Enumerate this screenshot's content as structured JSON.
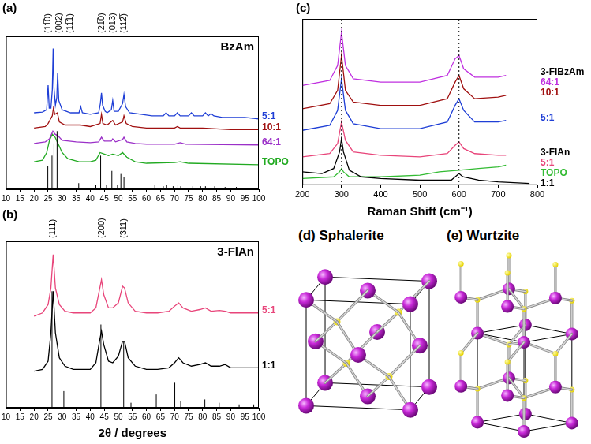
{
  "chart_data": [
    {
      "type": "line",
      "panel": "(a)",
      "title": "BzAm",
      "xlim": [
        10,
        100
      ],
      "xticks": [
        10,
        15,
        20,
        25,
        30,
        35,
        40,
        45,
        50,
        55,
        60,
        65,
        70,
        75,
        80,
        85,
        90,
        95,
        100
      ],
      "ylim": [
        0,
        100
      ],
      "tick_labels": "x",
      "grid": false,
      "series": [
        {
          "name": "5:1",
          "color": "#1f3fd6",
          "x": [
            20,
            23,
            24.5,
            25,
            25.4,
            26,
            26.5,
            26.8,
            27.1,
            27.6,
            28.1,
            28.4,
            28.8,
            30,
            33,
            36,
            36.6,
            37.2,
            40,
            43,
            43.6,
            44,
            44.4,
            45.3,
            46,
            47.5,
            48,
            48.5,
            50,
            51.5,
            52,
            52.6,
            54,
            58,
            62,
            66,
            67,
            68,
            70,
            71,
            72,
            75,
            76,
            77,
            80,
            81,
            82,
            83,
            84,
            87,
            90,
            95,
            100
          ],
          "values": [
            50,
            50.5,
            52,
            68,
            53,
            53,
            65,
            92,
            66,
            55,
            60,
            76,
            58,
            52,
            50,
            50,
            54,
            50,
            49,
            50,
            56,
            63,
            55,
            51,
            50,
            52,
            58,
            51,
            51,
            56,
            62,
            54,
            50,
            49,
            48,
            48,
            50,
            48,
            48,
            50,
            48,
            48,
            50,
            48,
            48,
            50,
            48,
            49.5,
            48,
            47,
            47,
            47,
            46
          ]
        },
        {
          "name": "10:1",
          "color": "#a01010",
          "x": [
            20,
            24,
            25,
            26.5,
            26.9,
            27.4,
            28.3,
            29,
            31,
            36.5,
            40,
            43.5,
            44,
            44.5,
            46,
            48,
            49,
            51.5,
            52,
            52.8,
            55,
            60,
            70,
            71,
            72,
            80,
            90,
            100
          ],
          "values": [
            40,
            41,
            43,
            48,
            53,
            49,
            50,
            44,
            42,
            42,
            41,
            43,
            49,
            43,
            42,
            45,
            42,
            44,
            48,
            43,
            41,
            40,
            40,
            41,
            40,
            40,
            39,
            39
          ]
        },
        {
          "name": "64:1",
          "color": "#9b30c8",
          "x": [
            20,
            24,
            25.5,
            26.7,
            27.5,
            28.5,
            30,
            35,
            40,
            43,
            44,
            45,
            47.5,
            48,
            49,
            51.5,
            52,
            53,
            56,
            60,
            70,
            72,
            74,
            100
          ],
          "values": [
            30,
            31,
            33,
            38,
            36,
            35,
            32,
            31,
            30.5,
            31,
            34,
            31.5,
            31.5,
            33,
            31,
            32.5,
            34,
            31,
            30,
            29.5,
            29.5,
            30.5,
            29.5,
            29
          ]
        },
        {
          "name": "TOPO",
          "color": "#22aa22",
          "x": [
            20,
            23,
            24.5,
            25.5,
            26.5,
            27.5,
            28.5,
            30,
            32,
            36,
            40,
            42,
            43.5,
            45,
            46.5,
            48,
            50,
            51.5,
            53,
            56,
            60,
            70,
            72,
            75,
            100
          ],
          "values": [
            18,
            19,
            24,
            32,
            36,
            34,
            30,
            24,
            20,
            18,
            18,
            19,
            24,
            23,
            22,
            23,
            22,
            24,
            21,
            18,
            17,
            17.5,
            18,
            17,
            16
          ]
        }
      ],
      "reference": {
        "color": "#000000",
        "x": [
          24.9,
          26.4,
          27.1,
          28.2,
          35.9,
          42.0,
          43.7,
          45.8,
          47.7,
          49.7,
          50.9,
          52.0,
          55.9,
          57.6,
          60.9,
          63.0,
          66.0,
          67.2,
          69.5,
          71.2,
          72.2,
          76.5,
          79.3,
          81.0,
          84.3,
          88.0,
          92.0,
          96.0
        ],
        "values": [
          15,
          22,
          30,
          38,
          4,
          3,
          22,
          3,
          12,
          3,
          10,
          8,
          1,
          1,
          1,
          3,
          2,
          3,
          2,
          3,
          2,
          2,
          2,
          2,
          2,
          1.5,
          1.5,
          1
        ]
      },
      "peak_labels": [
        {
          "x": 25.0,
          "label": "(11̅0)"
        },
        {
          "x": 26.8,
          "label": "(002)"
        },
        {
          "x": 28.4,
          "label": "(11̅1)"
        },
        {
          "x": 44.0,
          "label": "(21̅0)"
        },
        {
          "x": 48.0,
          "label": "(013)"
        },
        {
          "x": 52.0,
          "label": "(112̅)"
        }
      ]
    },
    {
      "type": "line",
      "panel": "(b)",
      "title": "3-FlAn",
      "x_label": "2θ / degrees",
      "xlim": [
        10,
        100
      ],
      "xticks": [
        10,
        15,
        20,
        25,
        30,
        35,
        40,
        45,
        50,
        55,
        60,
        65,
        70,
        75,
        80,
        85,
        90,
        95,
        100
      ],
      "ylim": [
        0,
        100
      ],
      "tick_labels": "x",
      "grid": false,
      "series": [
        {
          "name": "5:1",
          "color": "#e8457a",
          "x": [
            20,
            23,
            25,
            26,
            26.8,
            27.6,
            29,
            31,
            34,
            40,
            42,
            43.3,
            44,
            44.8,
            46.5,
            48,
            50,
            51.5,
            52.2,
            53.5,
            56,
            60,
            64,
            68,
            70,
            71.5,
            73,
            76,
            79,
            81,
            83,
            86,
            88,
            90,
            95,
            100
          ],
          "values": [
            55,
            57,
            62,
            72,
            92,
            72,
            62,
            58,
            57,
            57,
            60,
            71,
            77,
            68,
            60,
            60,
            63,
            73,
            72,
            63,
            58,
            57,
            57,
            58,
            61,
            63,
            60,
            58,
            59,
            60,
            58,
            58.5,
            58,
            57,
            57,
            57
          ]
        },
        {
          "name": "1:1",
          "color": "#000000",
          "x": [
            20,
            23,
            25,
            26,
            26.8,
            27.6,
            29,
            31,
            34,
            40,
            42,
            43.3,
            44,
            44.8,
            46.5,
            48,
            50,
            51.5,
            52.2,
            53.5,
            56,
            60,
            64,
            68,
            70,
            71.5,
            73,
            76,
            79,
            81,
            83,
            86,
            88,
            90,
            95,
            100
          ],
          "values": [
            22,
            23,
            28,
            45,
            70,
            45,
            30,
            25,
            23,
            23,
            27,
            40,
            46,
            38,
            28,
            27,
            31,
            40,
            40,
            30,
            25,
            23,
            23,
            24,
            27,
            30,
            27,
            25,
            26,
            27,
            25,
            25,
            26,
            24,
            24,
            24
          ]
        }
      ],
      "reference": {
        "color": "#000000",
        "x": [
          26.4,
          30.6,
          43.8,
          51.9,
          54.5,
          63.5,
          70.1,
          72.2,
          80.8,
          85.9,
          93.0,
          98.2
        ],
        "values": [
          70,
          10,
          50,
          40,
          3,
          8,
          15,
          4,
          5,
          3,
          2,
          2
        ]
      },
      "peak_labels": [
        {
          "x": 26.8,
          "label": "(111)"
        },
        {
          "x": 44.0,
          "label": "(200)"
        },
        {
          "x": 52.0,
          "label": "(311)"
        }
      ]
    },
    {
      "type": "line",
      "panel": "(c)",
      "x_label": "Raman Shift (cm⁻¹)",
      "xlim": [
        200,
        800
      ],
      "xticks": [
        200,
        300,
        400,
        500,
        600,
        700,
        800
      ],
      "ylim": [
        0,
        100
      ],
      "tick_labels": "x",
      "grid": false,
      "vlines": [
        300,
        600
      ],
      "series": [
        {
          "name": "1:1",
          "color": "#000000",
          "x": [
            200,
            250,
            280,
            295,
            300,
            305,
            320,
            350,
            400,
            500,
            580,
            595,
            600,
            610,
            650,
            700,
            780
          ],
          "values": [
            8,
            7,
            10,
            20,
            28,
            20,
            9,
            5,
            4,
            3,
            3,
            6,
            7,
            5,
            3,
            2,
            1
          ]
        },
        {
          "name": "TOPO",
          "color": "#33bb33",
          "x": [
            200,
            280,
            295,
            300,
            305,
            320,
            400,
            500,
            550,
            600,
            650,
            700,
            720
          ],
          "values": [
            4,
            5,
            8,
            10,
            8,
            5,
            5,
            6,
            8,
            9,
            10,
            11,
            12
          ]
        },
        {
          "name": "5:1",
          "color": "#e8457a",
          "x": [
            200,
            270,
            290,
            300,
            310,
            330,
            400,
            500,
            570,
            590,
            600,
            612,
            640,
            700,
            720
          ],
          "values": [
            17,
            19,
            25,
            38,
            27,
            20,
            18,
            17,
            19,
            24,
            26,
            22,
            19,
            18,
            18
          ]
        },
        {
          "name": "5:1",
          "color": "#1f3fd6",
          "x": [
            200,
            270,
            290,
            300,
            310,
            330,
            400,
            500,
            570,
            590,
            600,
            612,
            640,
            700,
            720
          ],
          "values": [
            33,
            36,
            45,
            64,
            45,
            37,
            34,
            34,
            38,
            48,
            52,
            45,
            38,
            38,
            39
          ]
        },
        {
          "name": "10:1",
          "color": "#a01010",
          "x": [
            200,
            270,
            290,
            300,
            310,
            330,
            400,
            500,
            570,
            590,
            600,
            612,
            640,
            700,
            720
          ],
          "values": [
            46,
            49,
            57,
            78,
            57,
            50,
            48,
            48,
            52,
            62,
            66,
            58,
            52,
            53,
            54
          ]
        },
        {
          "name": "64:1",
          "color": "#c030e0",
          "x": [
            200,
            270,
            290,
            300,
            310,
            330,
            400,
            500,
            570,
            590,
            600,
            612,
            640,
            700,
            720
          ],
          "values": [
            60,
            63,
            72,
            92,
            72,
            64,
            62,
            62,
            66,
            76,
            78,
            70,
            65,
            65,
            66
          ]
        }
      ],
      "groups": [
        {
          "name": "3-FlBzAm",
          "members": [
            3,
            4,
            5
          ]
        },
        {
          "name": "3-FlAn",
          "members": [
            2
          ]
        }
      ]
    }
  ],
  "diagrams": [
    {
      "panel": "(d)",
      "title": "Sphalerite"
    },
    {
      "panel": "(e)",
      "title": "Wurtzite"
    }
  ]
}
